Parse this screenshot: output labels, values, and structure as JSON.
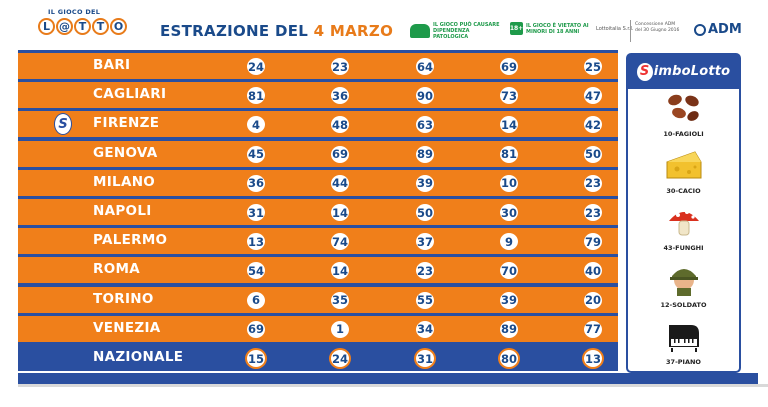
{
  "header": {
    "logo_top": "IL GIOCO DEL",
    "logo_letters": [
      "L",
      "@",
      "T",
      "T",
      "O"
    ],
    "title_prefix": "ESTRAZIONE DEL ",
    "title_date": "4 MARZO",
    "warning_1": "IL GIOCO PUÒ CAUSARE DIPENDENZA PATOLOGICA",
    "warning_2_badge": "18+",
    "warning_2": "IL GIOCO È VIETATO AI MINORI DI 18 ANNI",
    "operator": "Lottoitalia S.r.l.",
    "concession": "Concessione ADM del 30 Giugno 2016",
    "adm": "ADM"
  },
  "rows": [
    {
      "city": "BARI",
      "numbers": [
        "24",
        "23",
        "64",
        "69",
        "25"
      ],
      "simbolotto": false
    },
    {
      "city": "CAGLIARI",
      "numbers": [
        "81",
        "36",
        "90",
        "73",
        "47"
      ],
      "simbolotto": false
    },
    {
      "city": "FIRENZE",
      "numbers": [
        "4",
        "48",
        "63",
        "14",
        "42"
      ],
      "simbolotto": true
    },
    {
      "city": "GENOVA",
      "numbers": [
        "45",
        "69",
        "89",
        "81",
        "50"
      ],
      "simbolotto": false
    },
    {
      "city": "MILANO",
      "numbers": [
        "36",
        "44",
        "39",
        "10",
        "23"
      ],
      "simbolotto": false
    },
    {
      "city": "NAPOLI",
      "numbers": [
        "31",
        "14",
        "50",
        "30",
        "23"
      ],
      "simbolotto": false
    },
    {
      "city": "PALERMO",
      "numbers": [
        "13",
        "74",
        "37",
        "9",
        "79"
      ],
      "simbolotto": false
    },
    {
      "city": "ROMA",
      "numbers": [
        "54",
        "14",
        "23",
        "70",
        "40"
      ],
      "simbolotto": false
    },
    {
      "city": "TORINO",
      "numbers": [
        "6",
        "35",
        "55",
        "39",
        "20"
      ],
      "simbolotto": false
    },
    {
      "city": "VENEZIA",
      "numbers": [
        "69",
        "1",
        "34",
        "89",
        "77"
      ],
      "simbolotto": false
    },
    {
      "city": "NAZIONALE",
      "numbers": [
        "15",
        "24",
        "31",
        "80",
        "13"
      ],
      "simbolotto": false
    }
  ],
  "simbolotto": {
    "title_initial": "S",
    "title_rest": "imboLotto",
    "mark": "S",
    "symbols": [
      {
        "label": "10-FAGIOLI",
        "icon": "beans-icon"
      },
      {
        "label": "30-CACIO",
        "icon": "cheese-icon"
      },
      {
        "label": "43-FUNGHI",
        "icon": "mushroom-icon"
      },
      {
        "label": "12-SOLDATO",
        "icon": "soldier-icon"
      },
      {
        "label": "37-PIANO",
        "icon": "piano-icon"
      }
    ]
  },
  "colors": {
    "orange": "#f07f1a",
    "blue": "#2a4fa0",
    "dark_blue": "#1a4a8a",
    "green": "#1e9a4a"
  }
}
